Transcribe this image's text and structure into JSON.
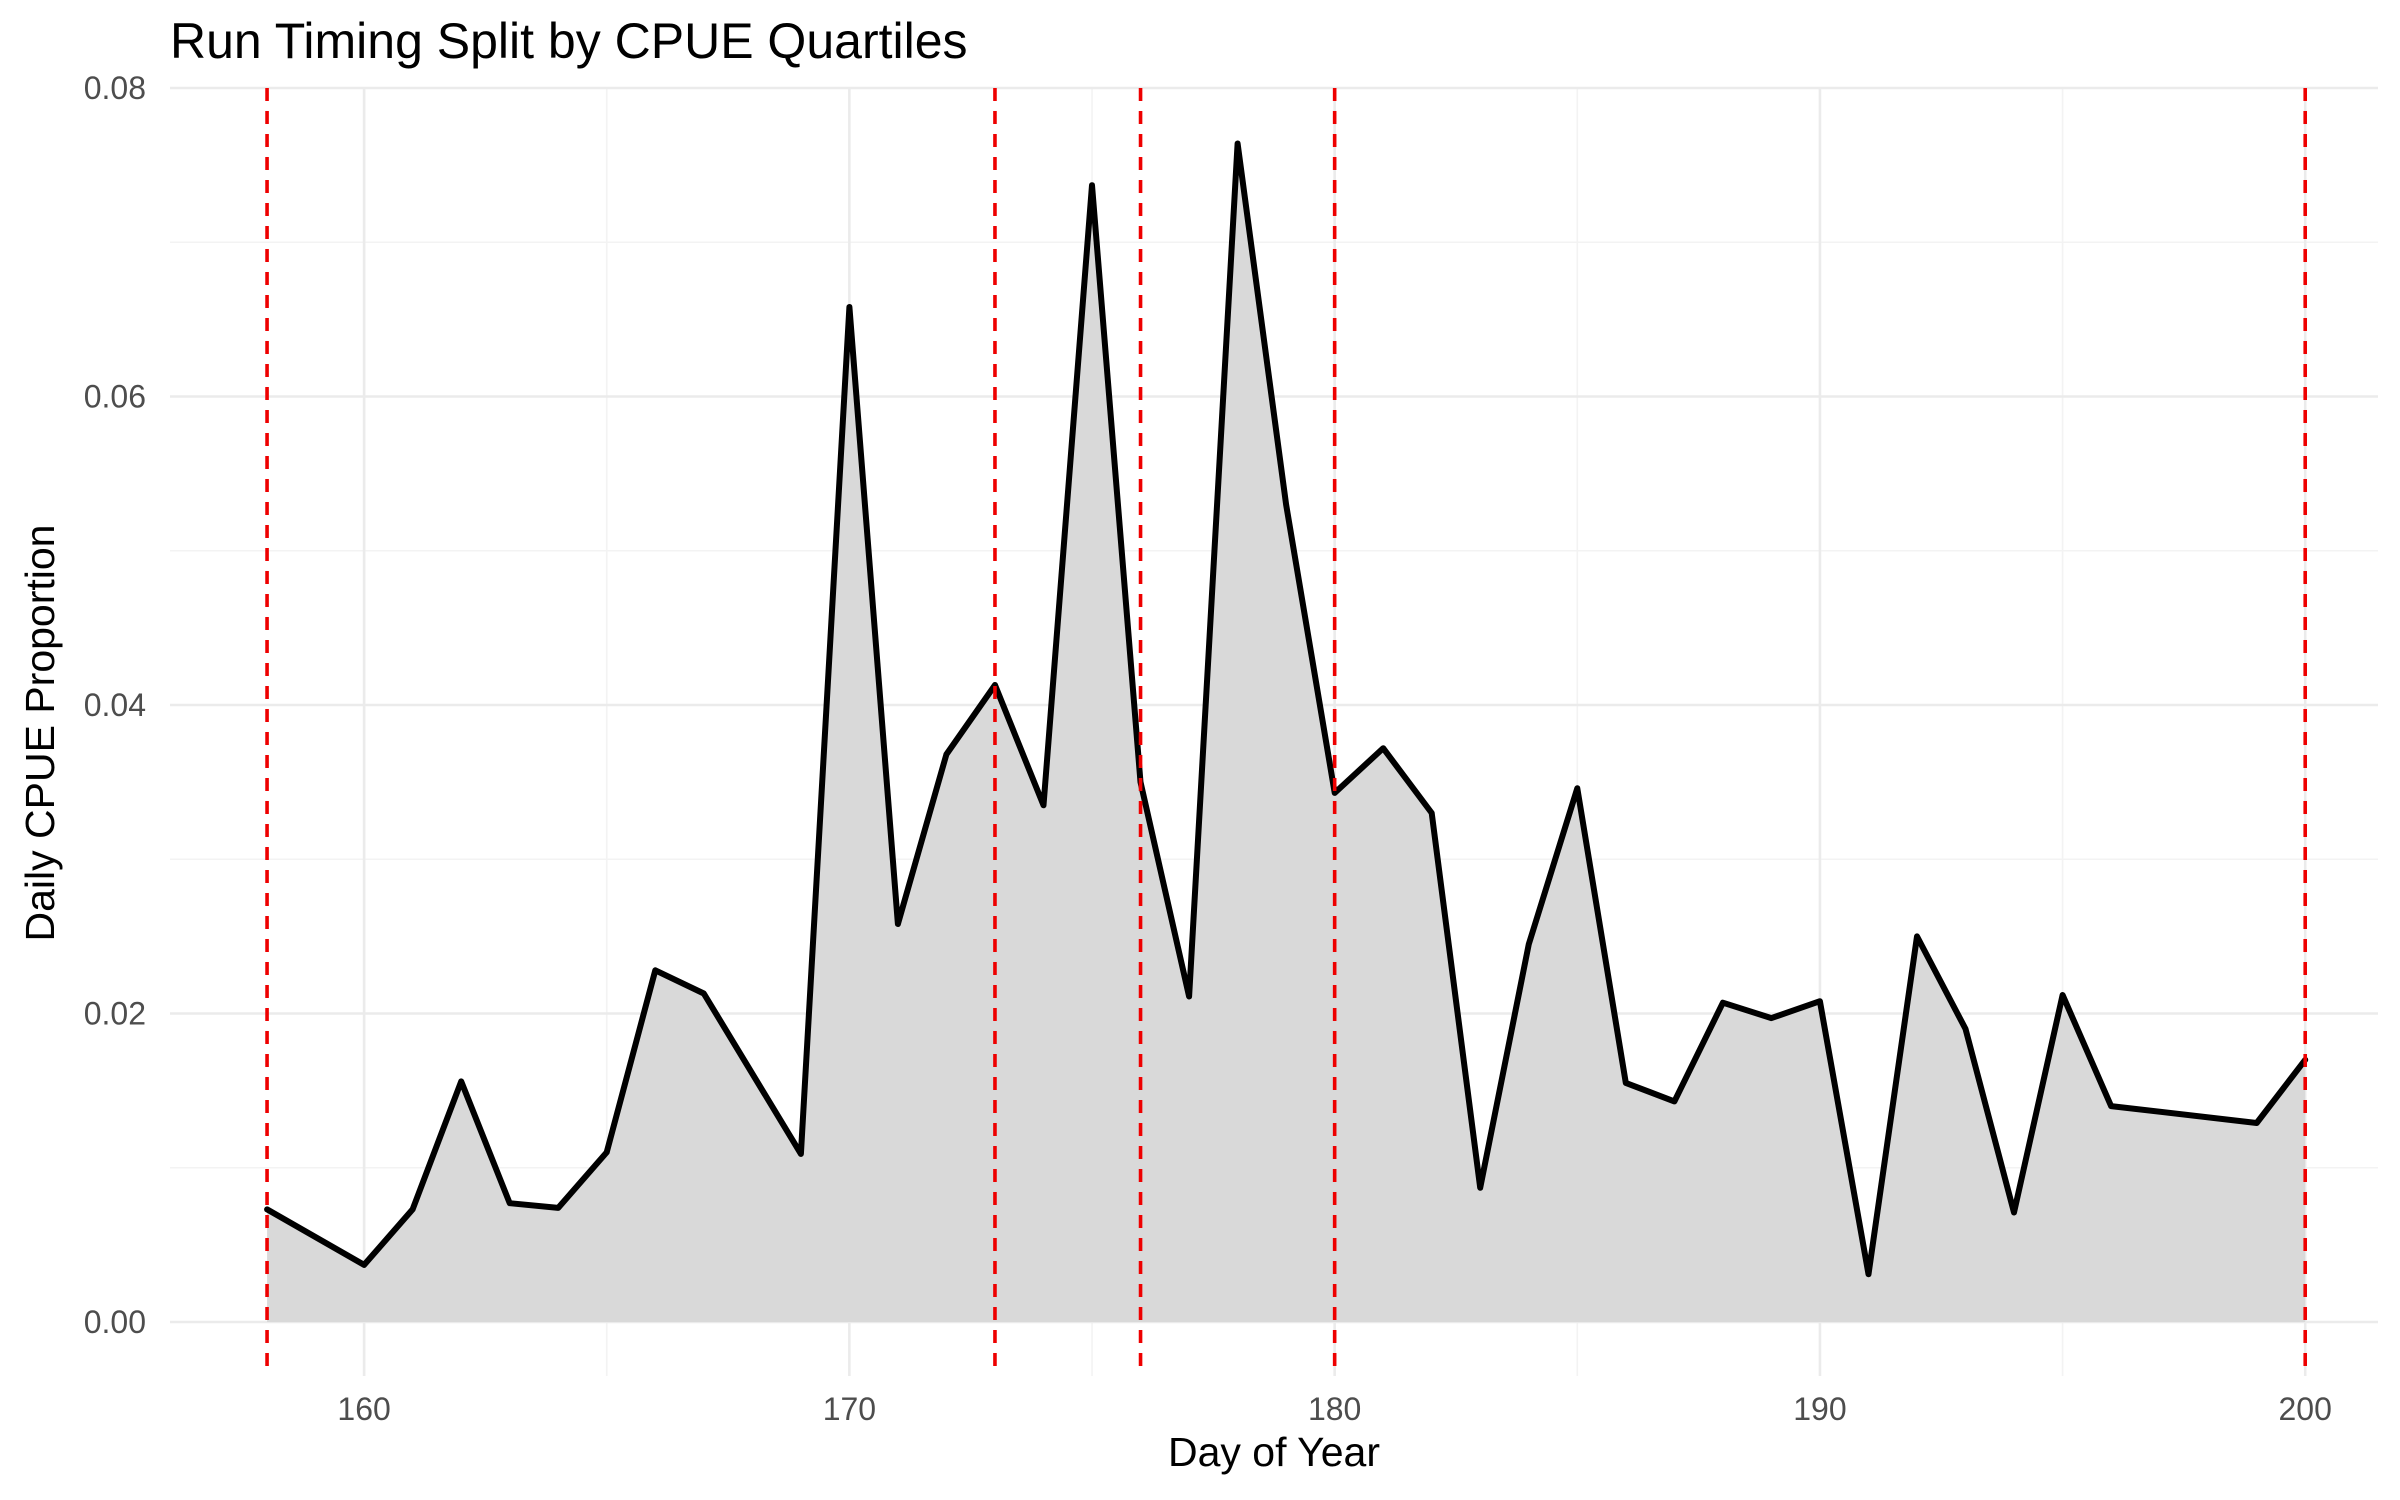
{
  "chart_data": {
    "type": "area",
    "title": "Run Timing Split by CPUE Quartiles",
    "xlabel": "Day of Year",
    "ylabel": "Daily CPUE Proportion",
    "xlim": [
      156,
      201.5
    ],
    "ylim": [
      -0.0035,
      0.08
    ],
    "x_ticks": [
      160,
      170,
      180,
      190,
      200
    ],
    "y_ticks": [
      0.0,
      0.02,
      0.04,
      0.06,
      0.08
    ],
    "x_tick_labels": [
      "160",
      "170",
      "180",
      "190",
      "200"
    ],
    "y_tick_labels": [
      "0.00",
      "0.02",
      "0.04",
      "0.06",
      "0.08"
    ],
    "grid": true,
    "legend": "none",
    "line_color": "#000000",
    "fill_color": "#d9d9d9",
    "quartile_line_color": "#ee0000",
    "quartile_lines": [
      158,
      173,
      176,
      180,
      200
    ],
    "series": [
      {
        "x": [
          158,
          160,
          161,
          162,
          163,
          164,
          165,
          166,
          167,
          169,
          170,
          171,
          172,
          173,
          174,
          175,
          176,
          177,
          178,
          179,
          180,
          181,
          182,
          183,
          184,
          185,
          186,
          187,
          188,
          189,
          190,
          191,
          192,
          193,
          194,
          195,
          196,
          199,
          200
        ],
        "y": [
          0.0073,
          0.0037,
          0.0073,
          0.0156,
          0.0077,
          0.0074,
          0.011,
          0.0228,
          0.0213,
          0.0109,
          0.0658,
          0.0258,
          0.0368,
          0.0413,
          0.0335,
          0.0737,
          0.035,
          0.0211,
          0.0764,
          0.053,
          0.0343,
          0.0372,
          0.033,
          0.0087,
          0.0245,
          0.0346,
          0.0155,
          0.0143,
          0.0207,
          0.0197,
          0.0208,
          0.0031,
          0.025,
          0.019,
          0.0071,
          0.0212,
          0.014,
          0.0129,
          0.017
        ]
      }
    ]
  }
}
